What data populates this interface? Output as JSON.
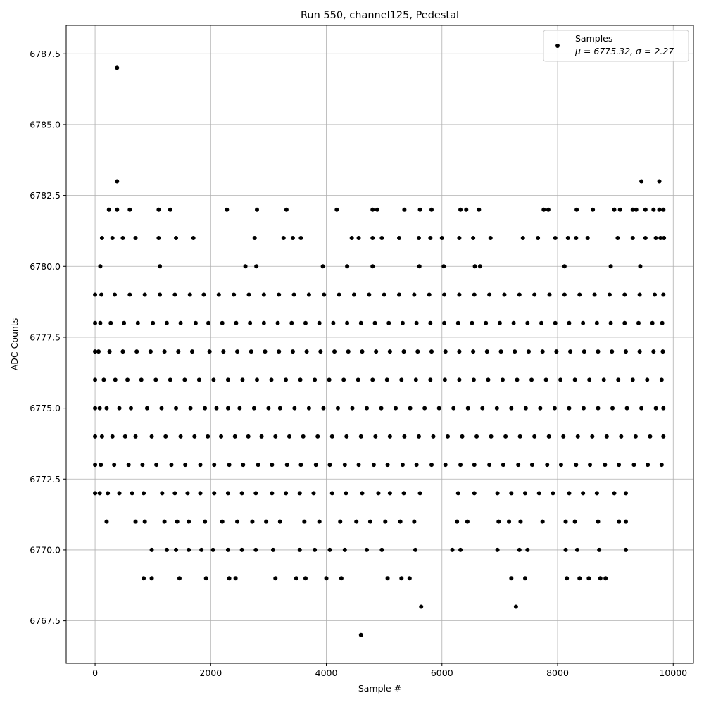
{
  "chart_data": {
    "type": "scatter",
    "title": "Run 550, channel125, Pedestal",
    "xlabel": "Sample #",
    "ylabel": "ADC Counts",
    "xlim": [
      -500,
      10350
    ],
    "ylim": [
      6766,
      6788.5
    ],
    "xticks": [
      0,
      2000,
      4000,
      6000,
      8000,
      10000
    ],
    "xtick_labels": [
      "0",
      "2000",
      "4000",
      "6000",
      "8000",
      "10000"
    ],
    "yticks": [
      6767.5,
      6770.0,
      6772.5,
      6775.0,
      6777.5,
      6780.0,
      6782.5,
      6785.0,
      6787.5
    ],
    "ytick_labels": [
      "6767.5",
      "6770.0",
      "6772.5",
      "6775.0",
      "6777.5",
      "6780.0",
      "6782.5",
      "6785.0",
      "6787.5"
    ],
    "grid": true,
    "legend": {
      "placement": "top-right",
      "label": "Samples",
      "stats": "μ = 6775.32, σ = 2.27"
    },
    "series": [
      {
        "name": "Samples",
        "color": "#000000",
        "x": [
          0,
          80,
          200,
          420,
          620,
          900,
          1150,
          1400,
          1650,
          1900,
          2100,
          2300,
          2500,
          2750,
          3000,
          3200,
          3450,
          3700,
          3950,
          4200,
          4450,
          4700,
          4950,
          5200,
          5450,
          5700,
          5950,
          6200,
          6450,
          6700,
          6950,
          7200,
          7450,
          7700,
          7950,
          8200,
          8450,
          8700,
          8950,
          9200,
          9450,
          9700,
          9830,
          0,
          120,
          300,
          520,
          700,
          980,
          1220,
          1480,
          1720,
          1950,
          2180,
          2420,
          2650,
          2880,
          3120,
          3360,
          3600,
          3850,
          4100,
          4350,
          4600,
          4850,
          5100,
          5350,
          5600,
          5850,
          6100,
          6350,
          6600,
          6850,
          7100,
          7350,
          7600,
          7850,
          8100,
          8350,
          8600,
          8850,
          9100,
          9350,
          9600,
          9830,
          0,
          150,
          350,
          560,
          800,
          1050,
          1300,
          1550,
          1800,
          2050,
          2300,
          2550,
          2800,
          3050,
          3300,
          3550,
          3800,
          4050,
          4300,
          4550,
          4800,
          5050,
          5300,
          5550,
          5800,
          6050,
          6300,
          6550,
          6800,
          7050,
          7300,
          7550,
          7800,
          8050,
          8300,
          8550,
          8800,
          9050,
          9300,
          9550,
          9800,
          0,
          100,
          330,
          580,
          820,
          1060,
          1320,
          1560,
          1820,
          2060,
          2320,
          2560,
          2820,
          3060,
          3320,
          3560,
          3820,
          4060,
          4320,
          4560,
          4820,
          5060,
          5320,
          5560,
          5820,
          6060,
          6320,
          6560,
          6820,
          7060,
          7320,
          7560,
          7820,
          8060,
          8320,
          8560,
          8820,
          9060,
          9320,
          9560,
          9800,
          0,
          60,
          250,
          480,
          720,
          960,
          1200,
          1440,
          1680,
          1980,
          2220,
          2460,
          2700,
          2940,
          3180,
          3420,
          3660,
          3900,
          4140,
          4380,
          4620,
          4860,
          5100,
          5340,
          5580,
          5820,
          6060,
          6300,
          6540,
          6780,
          7020,
          7260,
          7500,
          7740,
          7980,
          8220,
          8460,
          8700,
          8940,
          9180,
          9420,
          9660,
          9820,
          0,
          90,
          270,
          500,
          740,
          1000,
          1240,
          1480,
          1740,
          1960,
          2200,
          2440,
          2680,
          2920,
          3160,
          3400,
          3640,
          3880,
          4120,
          4360,
          4600,
          4840,
          5080,
          5320,
          5560,
          5800,
          6040,
          6280,
          6520,
          6760,
          7000,
          7240,
          7480,
          7720,
          7960,
          8200,
          8440,
          8680,
          8920,
          9160,
          9400,
          9640,
          9810,
          0,
          110,
          340,
          600,
          860,
          1120,
          1380,
          1640,
          1880,
          2140,
          2400,
          2660,
          2920,
          3180,
          3440,
          3700,
          3960,
          4220,
          4480,
          4740,
          5000,
          5260,
          5520,
          5780,
          6040,
          6300,
          6560,
          6820,
          7080,
          7340,
          7600,
          7860,
          8120,
          8380,
          8640,
          8900,
          9160,
          9420,
          9680,
          9830,
          0,
          80,
          220,
          420,
          640,
          840,
          1160,
          1380,
          1600,
          1820,
          2060,
          2300,
          2540,
          2780,
          3060,
          3300,
          3540,
          3780,
          4100,
          4340,
          4620,
          4900,
          5100,
          5340,
          5620,
          6280,
          6560,
          6960,
          7200,
          7440,
          7680,
          7920,
          8200,
          8440,
          8680,
          8980,
          9180,
          200,
          700,
          860,
          1200,
          1420,
          1620,
          1900,
          2200,
          2460,
          2720,
          2960,
          3200,
          3620,
          3880,
          4240,
          4520,
          4760,
          5020,
          5280,
          5520,
          6260,
          6440,
          6980,
          7160,
          7360,
          7740,
          8140,
          8300,
          8700,
          9060,
          9180,
          980,
          1240,
          1400,
          1620,
          1840,
          2040,
          2300,
          2540,
          2780,
          3080,
          3540,
          3800,
          4060,
          4320,
          4700,
          4960,
          5540,
          6180,
          6320,
          6960,
          7340,
          7480,
          8140,
          8340,
          8720,
          9180,
          840,
          980,
          1460,
          1920,
          2320,
          2430,
          3120,
          3480,
          3640,
          4000,
          4260,
          5060,
          5300,
          5440,
          7200,
          7440,
          8160,
          8380,
          8540,
          8740,
          8830,
          5640,
          7280,
          4600,
          120,
          300,
          480,
          700,
          1100,
          1400,
          1700,
          2760,
          3260,
          3420,
          3560,
          4440,
          4560,
          4800,
          4960,
          5260,
          5600,
          5800,
          6000,
          6300,
          6540,
          6840,
          7400,
          7660,
          7960,
          8180,
          8320,
          8520,
          9040,
          9300,
          9520,
          9700,
          9780,
          9840,
          90,
          1120,
          2600,
          2790,
          3940,
          4360,
          4800,
          5610,
          6030,
          6570,
          6660,
          8120,
          8920,
          9430,
          240,
          380,
          600,
          1100,
          1300,
          2280,
          2800,
          3310,
          4180,
          4800,
          4880,
          5350,
          5620,
          5820,
          6320,
          6420,
          6640,
          7760,
          7840,
          8330,
          8610,
          8980,
          9080,
          9300,
          9360,
          9520,
          9660,
          9760,
          9830,
          380,
          9450,
          9760,
          380
        ],
        "y": [
          6775,
          6775,
          6775,
          6775,
          6775,
          6775,
          6775,
          6775,
          6775,
          6775,
          6775,
          6775,
          6775,
          6775,
          6775,
          6775,
          6775,
          6775,
          6775,
          6775,
          6775,
          6775,
          6775,
          6775,
          6775,
          6775,
          6775,
          6775,
          6775,
          6775,
          6775,
          6775,
          6775,
          6775,
          6775,
          6775,
          6775,
          6775,
          6775,
          6775,
          6775,
          6775,
          6775,
          6774,
          6774,
          6774,
          6774,
          6774,
          6774,
          6774,
          6774,
          6774,
          6774,
          6774,
          6774,
          6774,
          6774,
          6774,
          6774,
          6774,
          6774,
          6774,
          6774,
          6774,
          6774,
          6774,
          6774,
          6774,
          6774,
          6774,
          6774,
          6774,
          6774,
          6774,
          6774,
          6774,
          6774,
          6774,
          6774,
          6774,
          6774,
          6774,
          6774,
          6774,
          6774,
          6776,
          6776,
          6776,
          6776,
          6776,
          6776,
          6776,
          6776,
          6776,
          6776,
          6776,
          6776,
          6776,
          6776,
          6776,
          6776,
          6776,
          6776,
          6776,
          6776,
          6776,
          6776,
          6776,
          6776,
          6776,
          6776,
          6776,
          6776,
          6776,
          6776,
          6776,
          6776,
          6776,
          6776,
          6776,
          6776,
          6776,
          6776,
          6776,
          6776,
          6776,
          6773,
          6773,
          6773,
          6773,
          6773,
          6773,
          6773,
          6773,
          6773,
          6773,
          6773,
          6773,
          6773,
          6773,
          6773,
          6773,
          6773,
          6773,
          6773,
          6773,
          6773,
          6773,
          6773,
          6773,
          6773,
          6773,
          6773,
          6773,
          6773,
          6773,
          6773,
          6773,
          6773,
          6773,
          6773,
          6773,
          6773,
          6773,
          6773,
          6773,
          6773,
          6777,
          6777,
          6777,
          6777,
          6777,
          6777,
          6777,
          6777,
          6777,
          6777,
          6777,
          6777,
          6777,
          6777,
          6777,
          6777,
          6777,
          6777,
          6777,
          6777,
          6777,
          6777,
          6777,
          6777,
          6777,
          6777,
          6777,
          6777,
          6777,
          6777,
          6777,
          6777,
          6777,
          6777,
          6777,
          6777,
          6777,
          6777,
          6777,
          6777,
          6777,
          6777,
          6777,
          6778,
          6778,
          6778,
          6778,
          6778,
          6778,
          6778,
          6778,
          6778,
          6778,
          6778,
          6778,
          6778,
          6778,
          6778,
          6778,
          6778,
          6778,
          6778,
          6778,
          6778,
          6778,
          6778,
          6778,
          6778,
          6778,
          6778,
          6778,
          6778,
          6778,
          6778,
          6778,
          6778,
          6778,
          6778,
          6778,
          6778,
          6778,
          6778,
          6778,
          6778,
          6778,
          6778,
          6779,
          6779,
          6779,
          6779,
          6779,
          6779,
          6779,
          6779,
          6779,
          6779,
          6779,
          6779,
          6779,
          6779,
          6779,
          6779,
          6779,
          6779,
          6779,
          6779,
          6779,
          6779,
          6779,
          6779,
          6779,
          6779,
          6779,
          6779,
          6779,
          6779,
          6779,
          6779,
          6779,
          6779,
          6779,
          6779,
          6779,
          6779,
          6779,
          6779,
          6772,
          6772,
          6772,
          6772,
          6772,
          6772,
          6772,
          6772,
          6772,
          6772,
          6772,
          6772,
          6772,
          6772,
          6772,
          6772,
          6772,
          6772,
          6772,
          6772,
          6772,
          6772,
          6772,
          6772,
          6772,
          6772,
          6772,
          6772,
          6772,
          6772,
          6772,
          6772,
          6772,
          6772,
          6772,
          6772,
          6772,
          6771,
          6771,
          6771,
          6771,
          6771,
          6771,
          6771,
          6771,
          6771,
          6771,
          6771,
          6771,
          6771,
          6771,
          6771,
          6771,
          6771,
          6771,
          6771,
          6771,
          6771,
          6771,
          6771,
          6771,
          6771,
          6771,
          6771,
          6771,
          6771,
          6771,
          6771,
          6770,
          6770,
          6770,
          6770,
          6770,
          6770,
          6770,
          6770,
          6770,
          6770,
          6770,
          6770,
          6770,
          6770,
          6770,
          6770,
          6770,
          6770,
          6770,
          6770,
          6770,
          6770,
          6770,
          6770,
          6770,
          6770,
          6769,
          6769,
          6769,
          6769,
          6769,
          6769,
          6769,
          6769,
          6769,
          6769,
          6769,
          6769,
          6769,
          6769,
          6769,
          6769,
          6769,
          6769,
          6769,
          6769,
          6769,
          6768,
          6768,
          6767,
          6781,
          6781,
          6781,
          6781,
          6781,
          6781,
          6781,
          6781,
          6781,
          6781,
          6781,
          6781,
          6781,
          6781,
          6781,
          6781,
          6781,
          6781,
          6781,
          6781,
          6781,
          6781,
          6781,
          6781,
          6781,
          6781,
          6781,
          6781,
          6781,
          6781,
          6781,
          6781,
          6781,
          6781,
          6780,
          6780,
          6780,
          6780,
          6780,
          6780,
          6780,
          6780,
          6780,
          6780,
          6780,
          6780,
          6780,
          6780,
          6782,
          6782,
          6782,
          6782,
          6782,
          6782,
          6782,
          6782,
          6782,
          6782,
          6782,
          6782,
          6782,
          6782,
          6782,
          6782,
          6782,
          6782,
          6782,
          6782,
          6782,
          6782,
          6782,
          6782,
          6782,
          6782,
          6782,
          6782,
          6782,
          6783,
          6783,
          6783,
          6787
        ]
      }
    ]
  }
}
